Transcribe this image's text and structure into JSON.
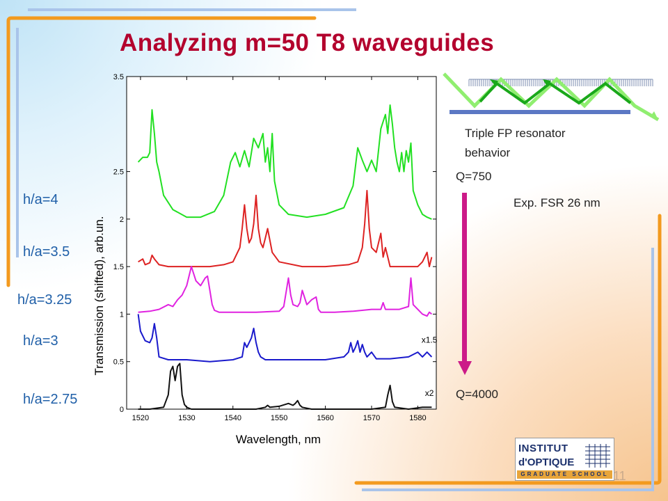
{
  "slide": {
    "title": "Analyzing m=50 T8 waveguides",
    "page_number": "11",
    "labels_ha": [
      "h/a=4",
      "h/a=3.5",
      "h/a=3.25",
      "h/a=3",
      "h/a=2.75"
    ],
    "triple_fp_line1": "Triple FP resonator",
    "triple_fp_line2": "behavior",
    "q_top": "Q=750",
    "q_bottom": "Q=4000",
    "fsr": "Exp. FSR 26 nm",
    "logo": {
      "line1": "INSTITUT",
      "line2": "d'OPTIQUE",
      "line3": "GRADUATE SCHOOL"
    }
  },
  "colors": {
    "title": "#b3002d",
    "labels": "#1f5fa8",
    "arrow": "#cc1a88",
    "orange": "#f39a1e",
    "blue": "#a9c4ea"
  },
  "chart_data": {
    "type": "line",
    "xlabel": "Wavelength, nm",
    "ylabel": "Transmission (shifted), arb.un.",
    "xlim": [
      1517,
      1584
    ],
    "ylim": [
      0,
      3.5
    ],
    "xticks": [
      1520,
      1530,
      1540,
      1550,
      1560,
      1570,
      1580
    ],
    "yticks": [
      "0",
      "0.5",
      "1",
      "1.5",
      "2",
      "2.5",
      "3.5"
    ],
    "yticks_values": [
      0,
      0.5,
      1,
      1.5,
      2,
      2.5,
      3.5
    ],
    "annotations": [
      {
        "text": "x1.5",
        "x": 1582.5,
        "y": 0.7
      },
      {
        "text": "x2",
        "x": 1582.5,
        "y": 0.14
      }
    ],
    "series": [
      {
        "color": "#22e022",
        "x": [
          1519.5,
          1520.5,
          1521.5,
          1522,
          1522.5,
          1523,
          1523.5,
          1524,
          1525,
          1527,
          1530,
          1533,
          1536,
          1538,
          1539.5,
          1540.5,
          1541.5,
          1542.5,
          1543.5,
          1544.5,
          1545.5,
          1546.5,
          1547,
          1547.5,
          1548,
          1548.5,
          1549,
          1550,
          1552,
          1556,
          1560,
          1564,
          1566,
          1567,
          1568,
          1569,
          1570,
          1571,
          1572,
          1573,
          1573.5,
          1574,
          1574.5,
          1575,
          1575.5,
          1576,
          1576.5,
          1577,
          1577.5,
          1578,
          1578.5,
          1579,
          1580,
          1581,
          1582,
          1583
        ],
        "y": [
          2.6,
          2.65,
          2.65,
          2.7,
          3.15,
          2.9,
          2.6,
          2.5,
          2.25,
          2.1,
          2.02,
          2.02,
          2.08,
          2.25,
          2.6,
          2.7,
          2.55,
          2.72,
          2.55,
          2.85,
          2.75,
          2.9,
          2.6,
          2.75,
          2.5,
          2.9,
          2.4,
          2.15,
          2.05,
          2.02,
          2.05,
          2.12,
          2.35,
          2.75,
          2.62,
          2.5,
          2.62,
          2.5,
          2.95,
          3.1,
          2.9,
          3.2,
          3.0,
          2.75,
          2.6,
          2.5,
          2.7,
          2.5,
          2.72,
          2.6,
          2.8,
          2.3,
          2.15,
          2.05,
          2.02,
          2.0
        ]
      },
      {
        "color": "#dd2222",
        "x": [
          1519.5,
          1520.5,
          1521,
          1522,
          1522.5,
          1523,
          1523.5,
          1524,
          1526,
          1530,
          1535,
          1538,
          1540,
          1541.5,
          1542,
          1542.5,
          1543,
          1543.5,
          1544,
          1544.5,
          1545,
          1545.5,
          1546,
          1546.5,
          1547,
          1547.5,
          1548.5,
          1550,
          1555,
          1560,
          1565,
          1567,
          1568,
          1568.5,
          1569,
          1569.5,
          1570,
          1571,
          1571.5,
          1572,
          1572.5,
          1573,
          1573.5,
          1574,
          1575,
          1577,
          1580,
          1581,
          1582,
          1582.5,
          1583
        ],
        "y": [
          1.55,
          1.58,
          1.52,
          1.54,
          1.62,
          1.58,
          1.55,
          1.52,
          1.5,
          1.5,
          1.5,
          1.52,
          1.55,
          1.7,
          1.9,
          2.15,
          1.9,
          1.75,
          1.8,
          1.95,
          2.25,
          1.9,
          1.75,
          1.7,
          1.8,
          1.9,
          1.65,
          1.55,
          1.5,
          1.5,
          1.52,
          1.55,
          1.7,
          1.95,
          2.3,
          1.9,
          1.7,
          1.65,
          1.75,
          1.85,
          1.6,
          1.7,
          1.6,
          1.5,
          1.5,
          1.5,
          1.5,
          1.55,
          1.65,
          1.5,
          1.6
        ]
      },
      {
        "color": "#e022e0",
        "x": [
          1519.5,
          1522,
          1524,
          1526,
          1527,
          1528,
          1529,
          1530,
          1531,
          1532,
          1533,
          1534,
          1534.5,
          1535,
          1535.5,
          1536,
          1537,
          1540,
          1545,
          1550,
          1551,
          1552,
          1552.5,
          1553,
          1554,
          1554.5,
          1555,
          1556,
          1557,
          1558,
          1558.5,
          1559,
          1560,
          1562,
          1566,
          1570,
          1572,
          1572.5,
          1573,
          1574,
          1576,
          1578,
          1578.5,
          1579,
          1580,
          1581,
          1582,
          1582.5,
          1583
        ],
        "y": [
          1.02,
          1.03,
          1.05,
          1.1,
          1.08,
          1.15,
          1.2,
          1.3,
          1.5,
          1.35,
          1.3,
          1.38,
          1.4,
          1.25,
          1.1,
          1.04,
          1.02,
          1.02,
          1.02,
          1.03,
          1.08,
          1.38,
          1.2,
          1.1,
          1.08,
          1.12,
          1.25,
          1.1,
          1.15,
          1.18,
          1.05,
          1.02,
          1.02,
          1.02,
          1.03,
          1.05,
          1.05,
          1.12,
          1.05,
          1.05,
          1.05,
          1.08,
          1.38,
          1.1,
          1.05,
          1.0,
          0.98,
          1.02,
          1.0
        ]
      },
      {
        "color": "#1a1acc",
        "x": [
          1519.5,
          1520,
          1521,
          1522,
          1522.5,
          1523,
          1523.5,
          1524,
          1526,
          1530,
          1535,
          1540,
          1542,
          1542.5,
          1543,
          1543.5,
          1544,
          1544.5,
          1545,
          1545.5,
          1546,
          1547,
          1550,
          1555,
          1560,
          1564,
          1565,
          1565.5,
          1566,
          1566.5,
          1567,
          1567.5,
          1568,
          1568.5,
          1569,
          1570,
          1571,
          1574,
          1576,
          1578,
          1580,
          1581,
          1582,
          1583
        ],
        "y": [
          1.0,
          0.82,
          0.72,
          0.7,
          0.75,
          0.9,
          0.75,
          0.55,
          0.52,
          0.52,
          0.5,
          0.52,
          0.55,
          0.7,
          0.65,
          0.7,
          0.75,
          0.85,
          0.7,
          0.6,
          0.55,
          0.52,
          0.52,
          0.52,
          0.52,
          0.55,
          0.6,
          0.7,
          0.6,
          0.65,
          0.72,
          0.6,
          0.68,
          0.6,
          0.55,
          0.6,
          0.53,
          0.53,
          0.54,
          0.55,
          0.6,
          0.55,
          0.6,
          0.55
        ]
      },
      {
        "color": "#111111",
        "x": [
          1519.5,
          1522,
          1525,
          1526,
          1526.5,
          1527,
          1527.5,
          1528,
          1528.5,
          1529,
          1529.5,
          1530,
          1531,
          1533,
          1540,
          1545,
          1547,
          1547.5,
          1548,
          1550,
          1552,
          1553,
          1553.5,
          1554,
          1554.5,
          1555,
          1557,
          1560,
          1570,
          1573,
          1573.5,
          1574,
          1574.5,
          1575,
          1578,
          1581,
          1583
        ],
        "y": [
          0.0,
          0.0,
          0.02,
          0.15,
          0.4,
          0.45,
          0.3,
          0.45,
          0.48,
          0.15,
          0.05,
          0.02,
          0.0,
          0.0,
          0.0,
          0.0,
          0.02,
          0.04,
          0.02,
          0.03,
          0.06,
          0.04,
          0.06,
          0.09,
          0.04,
          0.02,
          0.0,
          0.0,
          0.0,
          0.02,
          0.15,
          0.25,
          0.08,
          0.02,
          0.0,
          0.02,
          0.02
        ]
      }
    ]
  }
}
